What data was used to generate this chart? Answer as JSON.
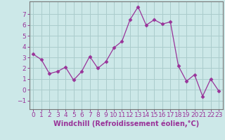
{
  "x": [
    0,
    1,
    2,
    3,
    4,
    5,
    6,
    7,
    8,
    9,
    10,
    11,
    12,
    13,
    14,
    15,
    16,
    17,
    18,
    19,
    20,
    21,
    22,
    23
  ],
  "y": [
    3.3,
    2.8,
    1.5,
    1.7,
    2.1,
    0.9,
    1.7,
    3.1,
    2.0,
    2.6,
    3.9,
    4.5,
    6.5,
    7.7,
    6.0,
    6.5,
    6.1,
    6.3,
    2.2,
    0.8,
    1.4,
    -0.6,
    1.0,
    -0.1
  ],
  "line_color": "#993399",
  "marker": "D",
  "marker_size": 2.5,
  "bg_color": "#cce8e8",
  "grid_color": "#aacccc",
  "xlabel": "Windchill (Refroidissement éolien,°C)",
  "xlabel_color": "#993399",
  "tick_color": "#993399",
  "axis_color": "#777777",
  "ylim": [
    -1.8,
    8.2
  ],
  "yticks": [
    -1,
    0,
    1,
    2,
    3,
    4,
    5,
    6,
    7
  ],
  "xlim": [
    -0.5,
    23.5
  ],
  "ylabel_fontsize": 7,
  "xlabel_fontsize": 7,
  "tick_fontsize": 6.5
}
